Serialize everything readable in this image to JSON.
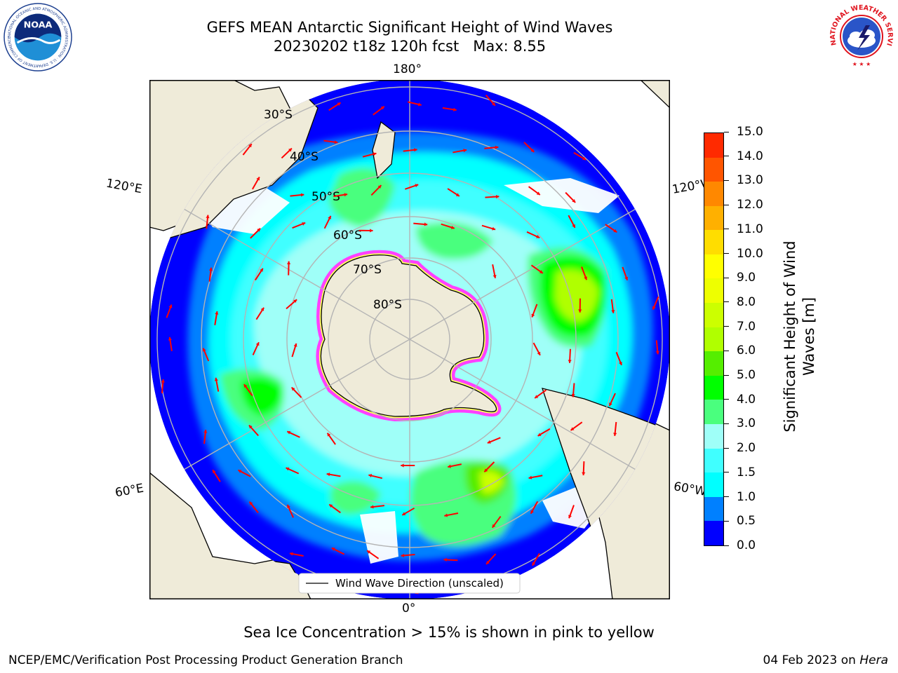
{
  "header": {
    "title_line1": "GEFS MEAN Antarctic Significant Height of Wind Waves",
    "title_line2": "20230202 t18z 120h fcst   Max: 8.55"
  },
  "logos": {
    "noaa": {
      "text": "NOAA",
      "ring_text": "NATIONAL OCEANIC AND ATMOSPHERIC ADMINISTRATION · U.S. DEPARTMENT OF COMMERCE"
    },
    "nws": {
      "ring_text": "NATIONAL WEATHER SERVICE"
    }
  },
  "map": {
    "projection": "south-polar-stereographic",
    "latitude_labels": [
      "30°S",
      "40°S",
      "50°S",
      "60°S",
      "70°S",
      "80°S"
    ],
    "longitude_labels": {
      "top": "180°",
      "bottom": "0°",
      "left_upper": "120°E",
      "left_lower": "60°E",
      "right_upper": "120°W",
      "right_lower": "60°W"
    },
    "legend_label": "Wind Wave Direction (unscaled)",
    "colors": {
      "land": "#efebd9",
      "grid": "#b4b4b4",
      "arrow": "#ff0000",
      "ice_edge": "#ff40ff",
      "ice_inner": "#ffff60"
    }
  },
  "colorbar": {
    "label_line1": "Significant Height of Wind",
    "label_line2": "Waves [m]",
    "ticks": [
      "0.0",
      "0.5",
      "1.0",
      "1.5",
      "2.0",
      "3.0",
      "4.0",
      "5.0",
      "6.0",
      "7.0",
      "8.0",
      "9.0",
      "10.0",
      "11.0",
      "12.0",
      "13.0",
      "14.0",
      "15.0"
    ],
    "colors": [
      "#0000ff",
      "#0080ff",
      "#00ffff",
      "#40ffff",
      "#9ffff8",
      "#4aff7e",
      "#00ff00",
      "#55ee00",
      "#b0ff00",
      "#ccff00",
      "#eeff00",
      "#ffff00",
      "#ffdd00",
      "#ffb000",
      "#ff8800",
      "#ff5500",
      "#ff2a00"
    ]
  },
  "footer": {
    "note": "Sea Ice Concentration > 15% is shown in pink to yellow",
    "left": "NCEP/EMC/Verification Post Processing Product Generation Branch",
    "right_date": "04 Feb 2023 on",
    "right_machine": "Hera"
  }
}
